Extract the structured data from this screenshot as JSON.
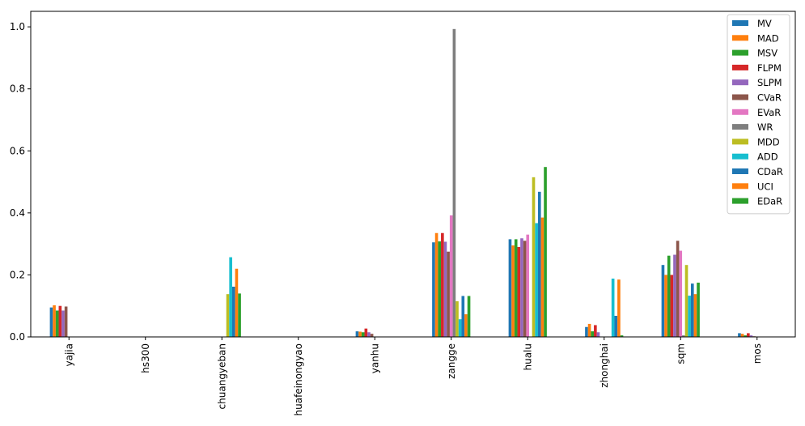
{
  "chart_data": {
    "type": "bar",
    "categories": [
      "yajia",
      "hs300",
      "chuangyeban",
      "huafeinongyao",
      "yanhu",
      "zangge",
      "hualu",
      "zhonghai",
      "sqm",
      "mos"
    ],
    "ylim": [
      0,
      1.05
    ],
    "yticks": [
      "0.0",
      "0.2",
      "0.4",
      "0.6",
      "0.8",
      "1.0"
    ],
    "ytick_values": [
      0,
      0.2,
      0.4,
      0.6,
      0.8,
      1.0
    ],
    "legend_position": "top-right",
    "grid": false,
    "series": [
      {
        "name": "MV",
        "color": "#1f77b4",
        "values": [
          0.095,
          0,
          0,
          0,
          0.018,
          0.305,
          0.315,
          0.032,
          0.232,
          0.012
        ]
      },
      {
        "name": "MAD",
        "color": "#ff7f0e",
        "values": [
          0.102,
          0,
          0,
          0,
          0.017,
          0.335,
          0.295,
          0.042,
          0.2,
          0.01
        ]
      },
      {
        "name": "MSV",
        "color": "#2ca02c",
        "values": [
          0.085,
          0,
          0,
          0,
          0.015,
          0.308,
          0.315,
          0.018,
          0.262,
          0.005
        ]
      },
      {
        "name": "FLPM",
        "color": "#d62728",
        "values": [
          0.1,
          0,
          0,
          0,
          0.027,
          0.335,
          0.29,
          0.038,
          0.2,
          0.012
        ]
      },
      {
        "name": "SLPM",
        "color": "#9467bd",
        "values": [
          0.085,
          0,
          0,
          0,
          0.015,
          0.307,
          0.318,
          0.015,
          0.265,
          0.005
        ]
      },
      {
        "name": "CVaR",
        "color": "#8c564b",
        "values": [
          0.098,
          0,
          0,
          0,
          0.01,
          0.275,
          0.31,
          0.0,
          0.31,
          0.002
        ]
      },
      {
        "name": "EVaR",
        "color": "#e377c2",
        "values": [
          0,
          0,
          0,
          0,
          0,
          0.392,
          0.33,
          0,
          0.278,
          0
        ]
      },
      {
        "name": "WR",
        "color": "#7f7f7f",
        "values": [
          0,
          0,
          0,
          0,
          0,
          0.993,
          0,
          0,
          0.005,
          0
        ]
      },
      {
        "name": "MDD",
        "color": "#bcbd22",
        "values": [
          0,
          0,
          0.138,
          0,
          0,
          0.115,
          0.515,
          0,
          0.232,
          0
        ]
      },
      {
        "name": "ADD",
        "color": "#17becf",
        "values": [
          0,
          0,
          0.257,
          0,
          0,
          0.057,
          0.367,
          0.188,
          0.133,
          0
        ]
      },
      {
        "name": "CDaR",
        "color": "#1f77b4",
        "values": [
          0,
          0,
          0.162,
          0,
          0,
          0.132,
          0.468,
          0.068,
          0.172,
          0
        ]
      },
      {
        "name": "UCI",
        "color": "#ff7f0e",
        "values": [
          0,
          0,
          0.22,
          0,
          0,
          0.073,
          0.385,
          0.185,
          0.138,
          0
        ]
      },
      {
        "name": "EDaR",
        "color": "#2ca02c",
        "values": [
          0,
          0,
          0.14,
          0,
          0,
          0.132,
          0.548,
          0.005,
          0.175,
          0
        ]
      }
    ]
  }
}
